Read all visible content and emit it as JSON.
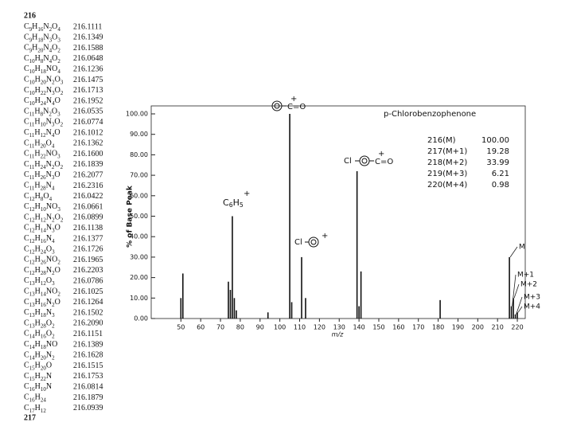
{
  "table": {
    "title": "216",
    "rows": [
      [
        "C9H16N2O4",
        "216.1111"
      ],
      [
        "C9H18N3O3",
        "216.1349"
      ],
      [
        "C9H20N4O2",
        "216.1588"
      ],
      [
        "C10H8N4O2",
        "216.0648"
      ],
      [
        "C10H18NO4",
        "216.1236"
      ],
      [
        "C10H20N2O3",
        "216.1475"
      ],
      [
        "C10H22N3O2",
        "216.1713"
      ],
      [
        "C10H24N4O",
        "216.1952"
      ],
      [
        "C11H8N2O3",
        "216.0535"
      ],
      [
        "C11H10N3O2",
        "216.0774"
      ],
      [
        "C11H12N4O",
        "216.1012"
      ],
      [
        "C11H20O4",
        "216.1362"
      ],
      [
        "C11H22NO3",
        "216.1600"
      ],
      [
        "C11H24N2O2",
        "216.1839"
      ],
      [
        "C11H26N3O",
        "216.2077"
      ],
      [
        "C11H28N4",
        "216.2316"
      ],
      [
        "C12H8O4",
        "216.0422"
      ],
      [
        "C12H10NO3",
        "216.0661"
      ],
      [
        "C12H12N2O2",
        "216.0899"
      ],
      [
        "C12H14N3O",
        "216.1138"
      ],
      [
        "C12H16N4",
        "216.1377"
      ],
      [
        "C12H24O3",
        "216.1726"
      ],
      [
        "C12H26NO2",
        "216.1965"
      ],
      [
        "C12H28N2O",
        "216.2203"
      ],
      [
        "C13H12O3",
        "216.0786"
      ],
      [
        "C13H14NO2",
        "216.1025"
      ],
      [
        "C13H16N2O",
        "216.1264"
      ],
      [
        "C13H18N3",
        "216.1502"
      ],
      [
        "C13H28O2",
        "216.2090"
      ],
      [
        "C14H16O2",
        "216.1151"
      ],
      [
        "C14H18NO",
        "216.1389"
      ],
      [
        "C14H20N2",
        "216.1628"
      ],
      [
        "C15H20O",
        "216.1515"
      ],
      [
        "C15H22N",
        "216.1753"
      ],
      [
        "C16H10N",
        "216.0814"
      ],
      [
        "C16H24",
        "216.1879"
      ],
      [
        "C17H12",
        "216.0939"
      ]
    ],
    "footer": "217"
  },
  "chart_data": {
    "type": "bar",
    "title": "p-Chlorobenzophenone",
    "y_label": "% of Base Peak",
    "x_label": "m/z",
    "color": "#111111",
    "x": [
      50,
      51,
      74,
      75,
      76,
      77,
      78,
      94,
      105,
      106,
      111,
      113,
      139,
      140,
      141,
      181,
      216,
      217,
      218,
      219,
      220
    ],
    "values": [
      10,
      22,
      18,
      14,
      50,
      10,
      4,
      3,
      100,
      8,
      30,
      10,
      72,
      6,
      23,
      9,
      30,
      6,
      10,
      2,
      3
    ],
    "xlim": [
      35,
      224
    ],
    "xticks": [
      50,
      60,
      70,
      80,
      90,
      100,
      110,
      120,
      130,
      140,
      150,
      160,
      170,
      180,
      190,
      200,
      210,
      220
    ],
    "ylim": [
      0,
      100
    ],
    "yticks": [
      {
        "value": 0,
        "label": "0.00"
      },
      {
        "value": 10,
        "label": "10.00"
      },
      {
        "value": 20,
        "label": "20.00"
      },
      {
        "value": 30,
        "label": "30.00"
      },
      {
        "value": 40,
        "label": "40.00"
      },
      {
        "value": 50,
        "label": "50.00"
      },
      {
        "value": 60,
        "label": "60.00"
      },
      {
        "value": 70,
        "label": "70.00"
      },
      {
        "value": 80,
        "label": "80.00"
      },
      {
        "value": 90,
        "label": "90.00"
      },
      {
        "value": 100,
        "label": "100.00"
      }
    ],
    "peak_labels": [
      "M",
      "M+1",
      "M+2",
      "M+3",
      "M+4"
    ],
    "annotations": [
      "C=O",
      "C6H5",
      "Cl",
      "C=O",
      "Cl"
    ],
    "isotopes": [
      [
        "216(M)",
        "100.00"
      ],
      [
        "217(M+1)",
        "19.28"
      ],
      [
        "218(M+2)",
        "33.99"
      ],
      [
        "219(M+3)",
        "6.21"
      ],
      [
        "220(M+4)",
        "0.98"
      ]
    ]
  }
}
